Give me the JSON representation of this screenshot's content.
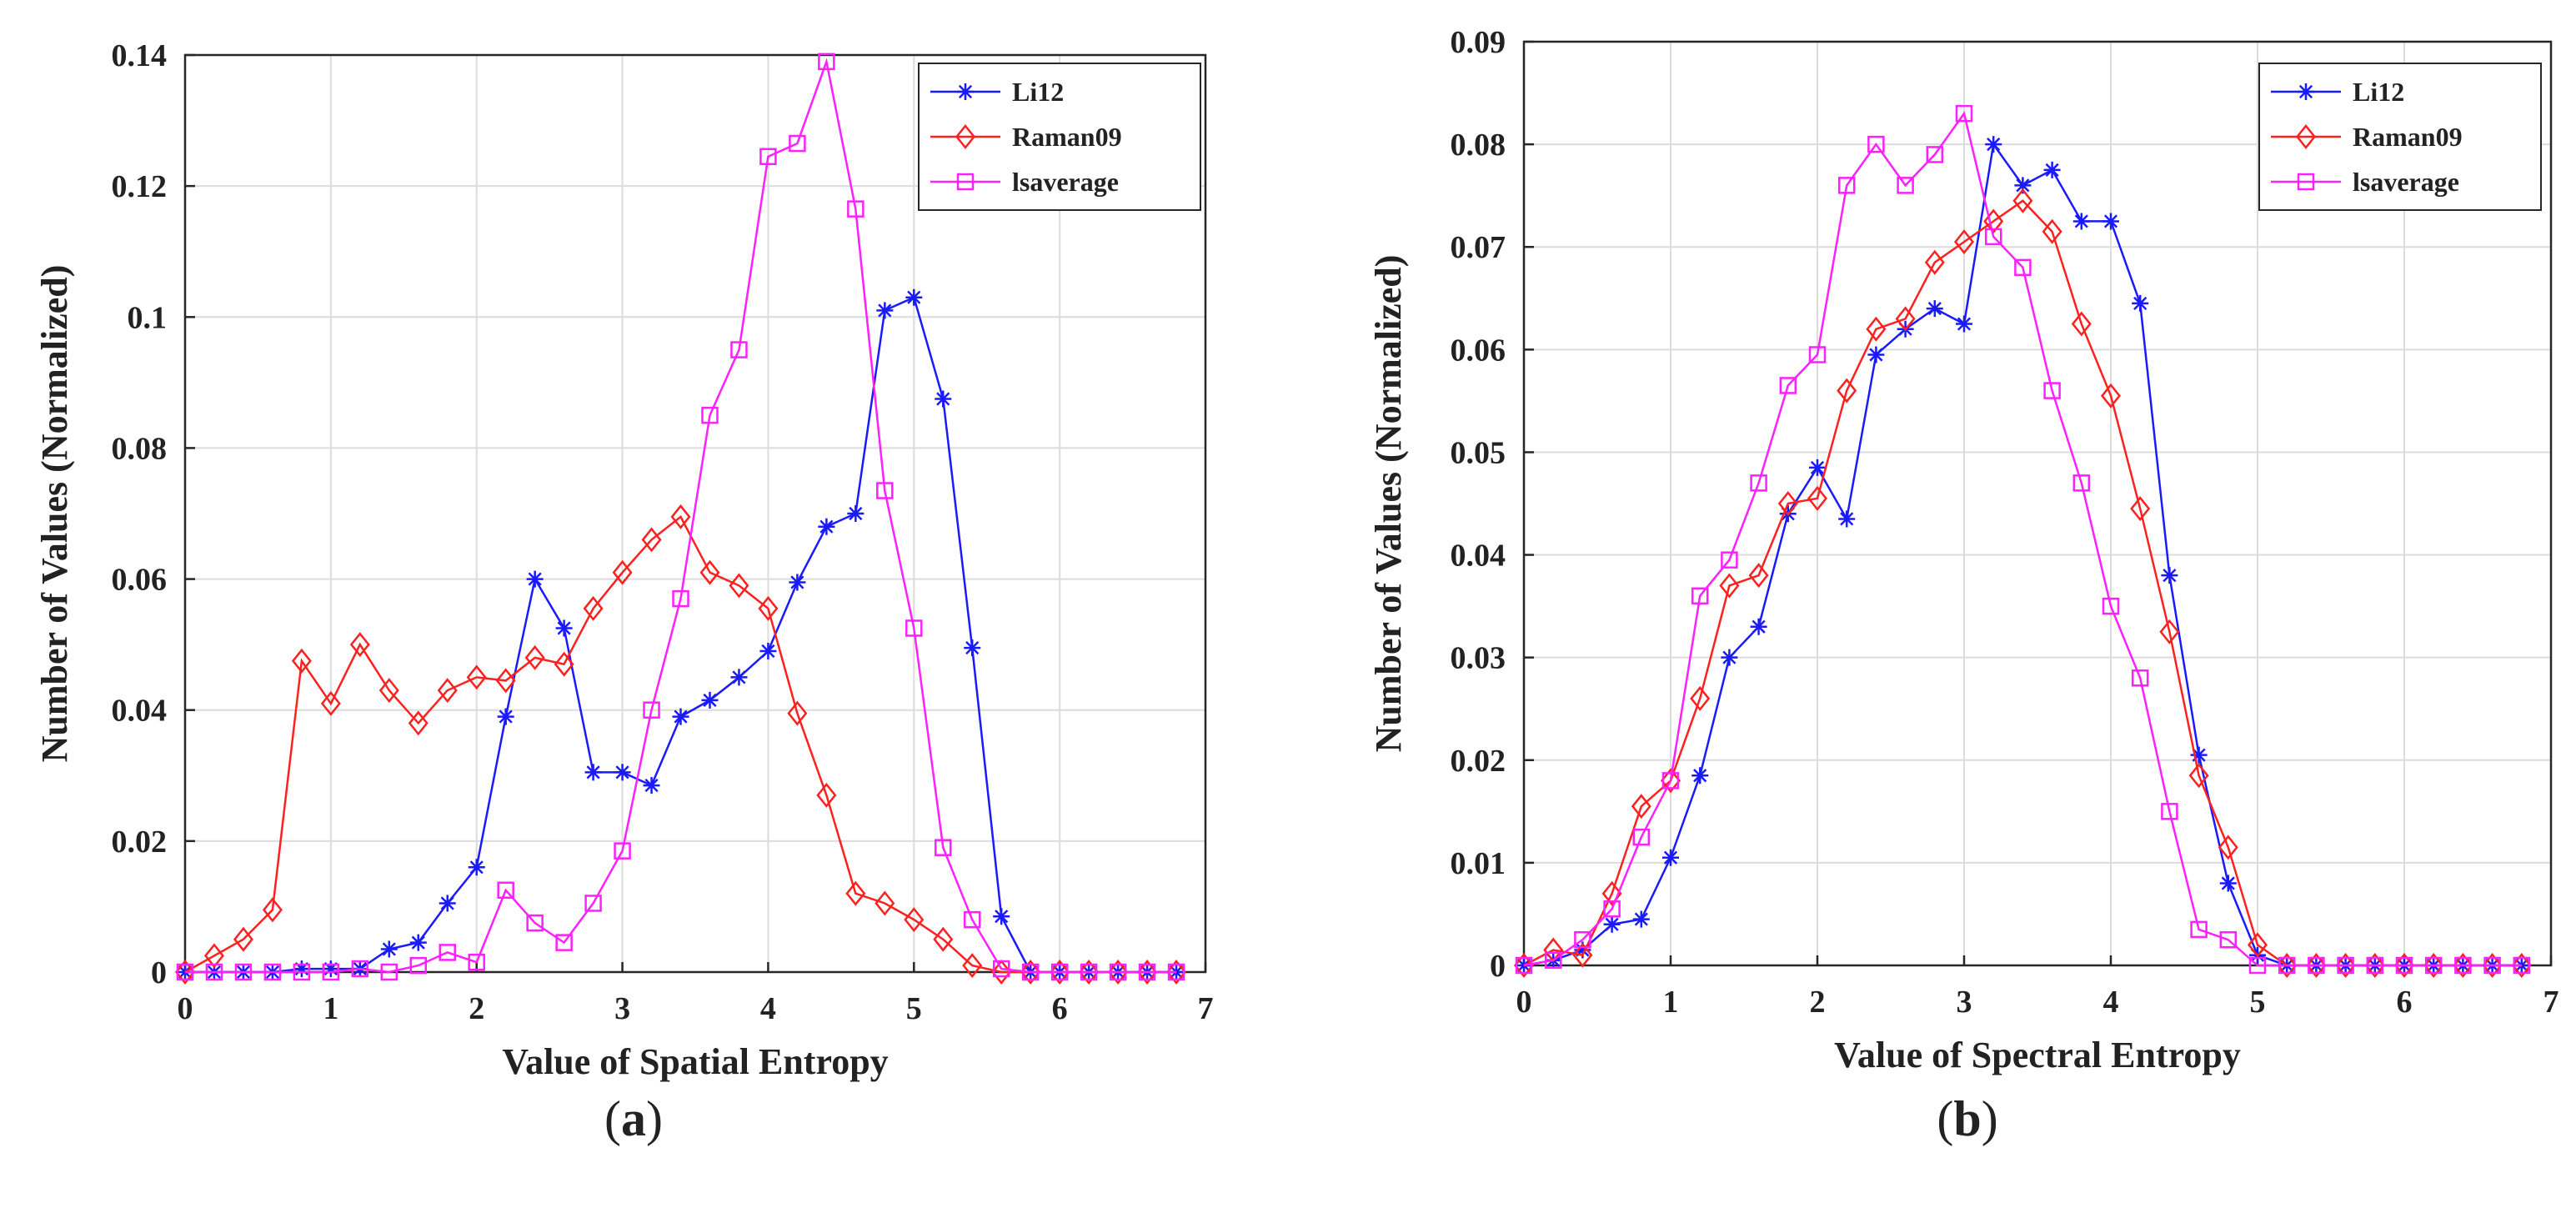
{
  "chart_data": [
    {
      "type": "line",
      "panel_label": "a",
      "caption_open": "(",
      "caption_close": ")",
      "title": "",
      "xlabel": "Value of Spatial Entropy",
      "ylabel": "Number of Values (Normalized)",
      "xlim": [
        0,
        7
      ],
      "ylim": [
        0,
        0.14
      ],
      "xticks": [
        0,
        1,
        2,
        3,
        4,
        5,
        6,
        7
      ],
      "yticks": [
        0,
        0.02,
        0.04,
        0.06,
        0.08,
        0.1,
        0.12,
        0.14
      ],
      "ytick_labels": [
        "0",
        "0.02",
        "0.04",
        "0.06",
        "0.08",
        "0.1",
        "0.12",
        "0.14"
      ],
      "grid": true,
      "legend_position": "top-right",
      "x": [
        0,
        0.2,
        0.4,
        0.6,
        0.8,
        1.0,
        1.2,
        1.4,
        1.6,
        1.8,
        2.0,
        2.2,
        2.4,
        2.6,
        2.8,
        3.0,
        3.2,
        3.4,
        3.6,
        3.8,
        4.0,
        4.2,
        4.4,
        4.6,
        4.8,
        5.0,
        5.2,
        5.4,
        5.6,
        5.8,
        6.0,
        6.2,
        6.4,
        6.6,
        6.8
      ],
      "series": [
        {
          "name": "Li12",
          "color": "#1a1aff",
          "marker": "asterisk",
          "values": [
            0,
            0,
            0,
            0,
            0.0005,
            0.0005,
            0.0005,
            0.0035,
            0.0045,
            0.0105,
            0.016,
            0.039,
            0.06,
            0.0525,
            0.0305,
            0.0305,
            0.0285,
            0.039,
            0.0415,
            0.045,
            0.049,
            0.0595,
            0.068,
            0.07,
            0.101,
            0.103,
            0.0875,
            0.0495,
            0.0085,
            0,
            0,
            0,
            0,
            0,
            0
          ]
        },
        {
          "name": "Raman09",
          "color": "#ff2020",
          "marker": "diamond",
          "values": [
            0,
            0.0025,
            0.005,
            0.0095,
            0.0475,
            0.041,
            0.05,
            0.043,
            0.038,
            0.043,
            0.045,
            0.0445,
            0.048,
            0.047,
            0.0555,
            0.061,
            0.066,
            0.0695,
            0.061,
            0.059,
            0.0555,
            0.0395,
            0.027,
            0.012,
            0.0105,
            0.008,
            0.005,
            0.001,
            0,
            0,
            0,
            0,
            0,
            0,
            0
          ]
        },
        {
          "name": "lsaverage",
          "color": "#ff20ff",
          "marker": "square",
          "values": [
            0,
            0,
            0,
            0,
            0,
            0,
            0.0005,
            0,
            0.001,
            0.003,
            0.0015,
            0.0125,
            0.0075,
            0.0045,
            0.0105,
            0.0185,
            0.04,
            0.057,
            0.085,
            0.095,
            0.1245,
            0.1265,
            0.139,
            0.1165,
            0.0735,
            0.0525,
            0.019,
            0.008,
            0.0005,
            0,
            0,
            0,
            0,
            0,
            0
          ]
        }
      ]
    },
    {
      "type": "line",
      "panel_label": "b",
      "caption_open": "(",
      "caption_close": ")",
      "title": "",
      "xlabel": "Value of Spectral Entropy",
      "ylabel": "Number of Values (Normalized)",
      "xlim": [
        0,
        7
      ],
      "ylim": [
        0,
        0.09
      ],
      "xticks": [
        0,
        1,
        2,
        3,
        4,
        5,
        6,
        7
      ],
      "yticks": [
        0,
        0.01,
        0.02,
        0.03,
        0.04,
        0.05,
        0.06,
        0.07,
        0.08,
        0.09
      ],
      "ytick_labels": [
        "0",
        "0.01",
        "0.02",
        "0.03",
        "0.04",
        "0.05",
        "0.06",
        "0.07",
        "0.08",
        "0.09"
      ],
      "grid": true,
      "legend_position": "top-right",
      "x": [
        0,
        0.2,
        0.4,
        0.6,
        0.8,
        1.0,
        1.2,
        1.4,
        1.6,
        1.8,
        2.0,
        2.2,
        2.4,
        2.6,
        2.8,
        3.0,
        3.2,
        3.4,
        3.6,
        3.8,
        4.0,
        4.2,
        4.4,
        4.6,
        4.8,
        5.0,
        5.2,
        5.4,
        5.6,
        5.8,
        6.0,
        6.2,
        6.4,
        6.6,
        6.8
      ],
      "series": [
        {
          "name": "Li12",
          "color": "#1a1aff",
          "marker": "asterisk",
          "values": [
            0,
            0.0005,
            0.0015,
            0.004,
            0.0045,
            0.0105,
            0.0185,
            0.03,
            0.033,
            0.044,
            0.0485,
            0.0435,
            0.0595,
            0.062,
            0.064,
            0.0625,
            0.08,
            0.076,
            0.0775,
            0.0725,
            0.0725,
            0.0645,
            0.038,
            0.0205,
            0.008,
            0.001,
            0,
            0,
            0,
            0,
            0,
            0,
            0,
            0,
            0
          ]
        },
        {
          "name": "Raman09",
          "color": "#ff2020",
          "marker": "diamond",
          "values": [
            0,
            0.0015,
            0.001,
            0.007,
            0.0155,
            0.018,
            0.026,
            0.037,
            0.038,
            0.045,
            0.0455,
            0.056,
            0.062,
            0.063,
            0.0685,
            0.0705,
            0.0725,
            0.0745,
            0.0715,
            0.0625,
            0.0555,
            0.0445,
            0.0325,
            0.0185,
            0.0115,
            0.002,
            0,
            0,
            0,
            0,
            0,
            0,
            0,
            0,
            0
          ]
        },
        {
          "name": "lsaverage",
          "color": "#ff20ff",
          "marker": "square",
          "values": [
            0,
            0.0005,
            0.0025,
            0.0055,
            0.0125,
            0.018,
            0.036,
            0.0395,
            0.047,
            0.0565,
            0.0595,
            0.076,
            0.08,
            0.076,
            0.079,
            0.083,
            0.071,
            0.068,
            0.056,
            0.047,
            0.035,
            0.028,
            0.015,
            0.0035,
            0.0025,
            0,
            0,
            0,
            0,
            0,
            0,
            0,
            0,
            0,
            0
          ]
        }
      ]
    }
  ]
}
